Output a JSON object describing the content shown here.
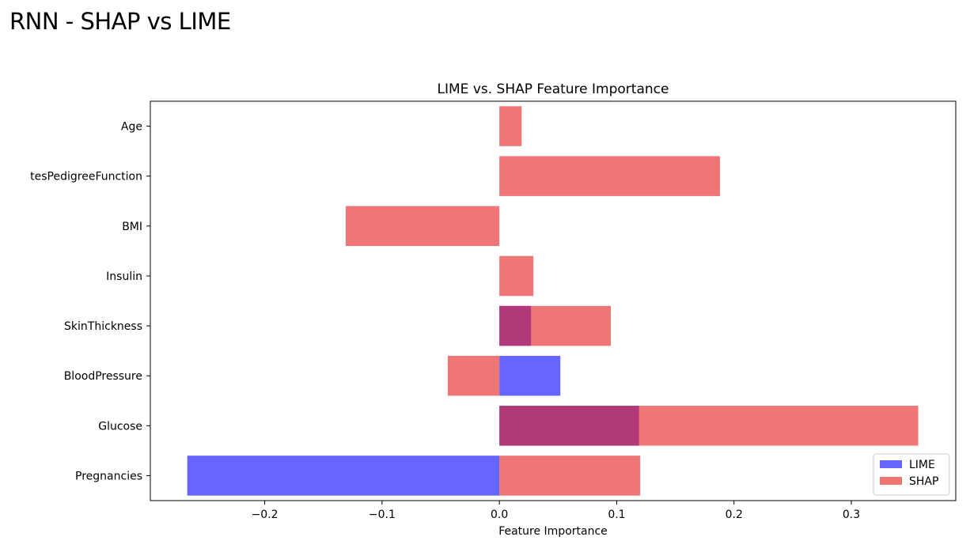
{
  "page": {
    "title": "RNN - SHAP vs LIME"
  },
  "chart_data": {
    "type": "bar",
    "orientation": "horizontal",
    "title": "LIME vs. SHAP Feature Importance",
    "xlabel": "Feature Importance",
    "ylabel": "",
    "categories": [
      "Pregnancies",
      "Glucose",
      "BloodPressure",
      "SkinThickness",
      "Insulin",
      "BMI",
      "tesPedigreeFunction",
      "Age"
    ],
    "series": [
      {
        "name": "LIME",
        "color": "#0000ff",
        "opacity": 0.6,
        "values": [
          -0.266,
          0.119,
          0.052,
          0.027,
          0.0,
          0.0,
          0.0,
          0.0
        ]
      },
      {
        "name": "SHAP",
        "color": "#e41a1c",
        "opacity": 0.6,
        "values": [
          0.12,
          0.357,
          -0.044,
          0.095,
          0.029,
          -0.131,
          0.188,
          0.019
        ]
      }
    ],
    "xlim": [
      -0.2975,
      0.389
    ],
    "xticks": [
      -0.2,
      -0.1,
      0.0,
      0.1,
      0.2,
      0.3
    ],
    "xtick_labels": [
      "−0.2",
      "−0.1",
      "0.0",
      "0.1",
      "0.2",
      "0.3"
    ],
    "legend_position": "lower-right",
    "grid": false
  }
}
